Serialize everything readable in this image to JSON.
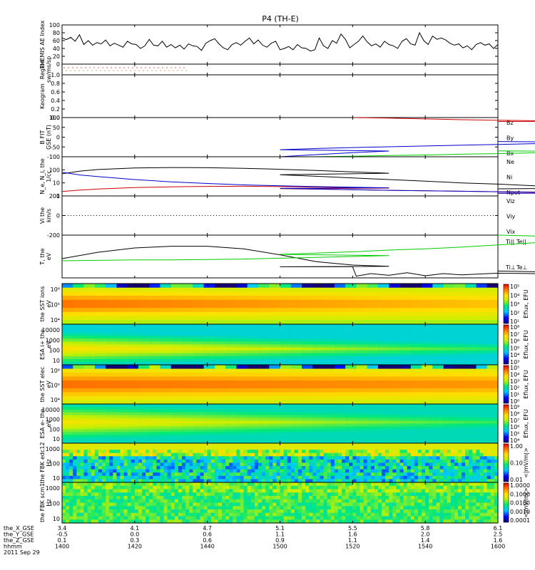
{
  "title": "P4 (TH-E)",
  "chart_data": [
    {
      "type": "line",
      "id": "ae",
      "ylabel": "THEMIS AE Index",
      "yticks": [
        "0",
        "20",
        "40",
        "60",
        "80",
        "100"
      ],
      "ylim": [
        0,
        120
      ],
      "series": [
        {
          "name": "AE",
          "color": "#000000",
          "values": [
            80,
            75,
            82,
            70,
            90,
            60,
            72,
            58,
            66,
            62,
            74,
            56,
            64,
            58,
            52,
            70,
            62,
            60,
            48,
            56,
            76,
            58,
            56,
            70,
            52,
            60,
            50,
            58,
            46,
            62,
            56,
            54,
            42,
            64,
            72,
            78,
            62,
            50,
            44,
            60,
            66,
            58,
            70,
            80,
            62,
            74,
            58,
            52,
            64,
            70,
            44,
            48,
            54,
            44,
            60,
            50,
            48,
            40,
            44,
            80,
            56,
            48,
            72,
            64,
            92,
            76,
            50,
            60,
            70,
            86,
            68,
            56,
            62,
            52,
            70,
            60,
            56,
            48,
            70,
            78,
            62,
            58,
            96,
            72,
            60,
            86,
            76,
            80,
            74,
            64,
            58,
            62,
            50,
            56,
            44,
            60,
            66,
            58,
            62,
            48,
            60
          ]
        }
      ]
    },
    {
      "type": "scatter",
      "id": "region",
      "ylabel": "Region",
      "ylabel2": "sw/ms/sp"
    },
    {
      "type": "line",
      "id": "keogram",
      "ylabel": "Keogram",
      "yticks": [
        "0.0",
        "0.2",
        "0.4",
        "0.6",
        "0.8",
        "1.0"
      ],
      "ylim": [
        0,
        1
      ]
    },
    {
      "type": "line",
      "id": "bfit",
      "ylabel": "B FIT",
      "ylabel2": "GSE (nT)",
      "yticks": [
        "-100",
        "-50",
        "0",
        "50",
        "100"
      ],
      "ylim": [
        -100,
        100
      ],
      "legend": [
        "Bz",
        "By",
        "Bx"
      ],
      "series": [
        {
          "name": "Bz",
          "color": "#cc0000",
          "x": [
            1520.5,
            1530,
            1540,
            1550,
            1560,
            1570,
            1580,
            1590,
            1600
          ],
          "values": [
            100,
            97,
            93,
            89,
            86,
            84,
            82,
            81,
            80
          ]
        },
        {
          "name": "By",
          "color": "#00cc00",
          "x": [
            1509,
            1520,
            1530,
            1540,
            1550,
            1560,
            1570,
            1580,
            1590,
            1600
          ],
          "values": [
            -100,
            -97,
            -94,
            -91,
            -87,
            -84,
            -80,
            -76,
            -73,
            -70
          ]
        },
        {
          "name": "Bx",
          "color": "#0000cc",
          "x": [
            1460,
            1470,
            1480,
            1490,
            1500,
            1510,
            1520,
            1530,
            1540,
            1550,
            1560,
            1570,
            1580,
            1590,
            1600
          ],
          "values": [
            -100,
            -89,
            -79,
            -71,
            -64,
            -58,
            -53,
            -49,
            -45,
            -41,
            -37,
            -33,
            -30,
            -26,
            -22
          ]
        }
      ]
    },
    {
      "type": "line",
      "id": "density",
      "ylabel": "N_e, N_i, the",
      "ylabel2": "1/cc",
      "yticks": [
        "1",
        "10",
        "100"
      ],
      "ylim": [
        1,
        1000
      ],
      "scale": "log",
      "legend": [
        "Ne",
        "Ni",
        "Npot"
      ],
      "series": [
        {
          "name": "Ne",
          "color": "#cc0000",
          "x": [
            1400,
            1405,
            1410,
            1420,
            1430,
            1440,
            1450,
            1460,
            1470,
            1480,
            1490,
            1500,
            1510,
            1520,
            1530,
            1540,
            1550,
            1560,
            1570,
            1580,
            1590,
            1600
          ],
          "values": [
            2.2,
            2.8,
            3.4,
            4.4,
            5,
            5.4,
            5.5,
            5.2,
            4.8,
            4.4,
            4,
            3.6,
            3.3,
            3,
            2.7,
            2.5,
            2.3,
            2.1,
            2,
            1.8,
            1.7,
            1.6
          ]
        },
        {
          "name": "Ni",
          "color": "#000000",
          "x": [
            1400,
            1405,
            1410,
            1420,
            1430,
            1440,
            1450,
            1460,
            1470,
            1480,
            1490,
            1500,
            1510,
            1520,
            1530,
            1540,
            1550,
            1560,
            1570,
            1580,
            1590,
            1600
          ],
          "values": [
            50,
            80,
            105,
            140,
            150,
            145,
            130,
            110,
            90,
            70,
            55,
            42,
            32,
            24,
            18,
            13.5,
            10,
            8,
            6,
            4.8,
            4,
            3.5
          ]
        },
        {
          "name": "Npot",
          "color": "#0000cc",
          "x": [
            1400,
            1405,
            1410,
            1420,
            1430,
            1440,
            1450,
            1460,
            1470,
            1480,
            1490,
            1500,
            1510,
            1520,
            1530,
            1540,
            1550,
            1560,
            1570,
            1580,
            1590,
            1600
          ],
          "values": [
            65,
            40,
            30,
            18,
            12,
            9,
            7,
            6,
            5.2,
            4.6,
            4.2,
            3.8,
            3.4,
            3,
            2.7,
            2.5,
            2.3,
            2.1,
            1.9,
            1.8,
            1.7,
            1.6
          ]
        }
      ]
    },
    {
      "type": "line",
      "id": "velocity",
      "ylabel": "Vi the",
      "ylabel2": "km/s",
      "yticks": [
        "-200",
        "0",
        "200"
      ],
      "ylim": [
        -300,
        300
      ],
      "legend": [
        "Viz",
        "Viy",
        "Vix"
      ],
      "zero_line": true
    },
    {
      "type": "line",
      "id": "temperature",
      "ylabel": "T, the",
      "ylabel2": "eV",
      "ylim": [
        0,
        1
      ],
      "legend": [
        "Ti||",
        "Te||",
        "Ti⊥",
        "Te⊥"
      ],
      "series": [
        {
          "name": "Te",
          "color": "#000000",
          "x": [
            1400,
            1410,
            1420,
            1430,
            1440,
            1450,
            1460,
            1470,
            1480,
            1490,
            1500,
            1510,
            1520,
            1521,
            1525,
            1530,
            1535,
            1540,
            1545,
            1550,
            1560,
            1570,
            1580,
            1590,
            1600
          ],
          "values": [
            0.45,
            0.6,
            0.7,
            0.74,
            0.74,
            0.68,
            0.54,
            0.38,
            0.3,
            0.27,
            0.26,
            0.26,
            0.26,
            0.04,
            0.1,
            0.06,
            0.12,
            0.05,
            0.1,
            0.07,
            0.11,
            0.1,
            0.14,
            0.11,
            0.16
          ]
        },
        {
          "name": "Ti",
          "color": "#00cc00",
          "x": [
            1400,
            1410,
            1420,
            1430,
            1440,
            1450,
            1460,
            1470,
            1480,
            1490,
            1500,
            1510,
            1520,
            1530,
            1540,
            1550,
            1560,
            1570,
            1580,
            1590,
            1600
          ],
          "values": [
            0.4,
            0.41,
            0.42,
            0.42,
            0.43,
            0.44,
            0.46,
            0.48,
            0.5,
            0.52,
            0.55,
            0.58,
            0.61,
            0.65,
            0.68,
            0.72,
            0.77,
            0.82,
            0.88,
            0.94,
            1.0
          ]
        }
      ]
    },
    {
      "type": "heatmap",
      "id": "ssti",
      "ylabel": "the SST ions",
      "ylabel2": "eV",
      "yticks": [
        "10⁴",
        "10⁵",
        "10⁶"
      ],
      "cbar": [
        "10¹",
        "10²",
        "10³",
        "10⁴",
        "10⁵"
      ],
      "cbar_label": "Eflux, EFU"
    },
    {
      "type": "heatmap",
      "id": "esai",
      "ylabel": "ESA i+ the",
      "ylabel2": "eV",
      "yticks": [
        "10",
        "100",
        "1000",
        "10000"
      ],
      "cbar": [
        "10³",
        "10⁴",
        "10⁵",
        "10⁶",
        "10⁷",
        "10⁸"
      ],
      "cbar_label": "Eflux, EFU"
    },
    {
      "type": "heatmap",
      "id": "sste",
      "ylabel": "the SST elec",
      "ylabel2": "eV",
      "yticks": [
        "10⁴",
        "10⁵",
        "10⁶"
      ],
      "cbar": [
        "10⁰",
        "10¹",
        "10²",
        "10³",
        "10⁴",
        "10⁵"
      ],
      "cbar_label": "Eflux, EFU"
    },
    {
      "type": "heatmap",
      "id": "esae",
      "ylabel": "ESA e- the",
      "ylabel2": "eV",
      "yticks": [
        "10",
        "100",
        "1000",
        "10000"
      ],
      "cbar": [
        "10⁴",
        "10⁵",
        "10⁶",
        "10⁷",
        "10⁸",
        "10⁹"
      ],
      "cbar_label": "Eflux, EFU"
    },
    {
      "type": "heatmap",
      "id": "fbkedc",
      "ylabel": "the FBK edc12",
      "ylabel2": "Hz",
      "yticks": [
        "10",
        "100",
        "1000"
      ],
      "cbar": [
        "0.01",
        "0.10",
        "1.00"
      ],
      "cbar_label": "<|mV/m|>"
    },
    {
      "type": "heatmap",
      "id": "fbkscm",
      "ylabel": "the FBK scm1",
      "ylabel2": "Hz",
      "yticks": [
        "10",
        "100",
        "1000"
      ],
      "cbar": [
        "0.0001",
        "0.0010",
        "0.0100",
        "0.1000",
        "1.0000"
      ],
      "cbar_label": "<|mV/m|>"
    }
  ],
  "xaxis": {
    "labels": [
      "the_X_GSE",
      "the_Y_GSE",
      "the_Z_GSE",
      "hhmm",
      "2011 Sep 29"
    ],
    "x": [
      1400,
      1420,
      1440,
      1500,
      1520,
      1540,
      1600
    ],
    "rows": [
      [
        "3.4",
        "4.1",
        "4.7",
        "5.1",
        "5.5",
        "5.8",
        "6.1"
      ],
      [
        "-0.5",
        "0.0",
        "0.6",
        "1.1",
        "1.6",
        "2.0",
        "2.5"
      ],
      [
        "0.1",
        "0.3",
        "0.6",
        "0.9",
        "1.1",
        "1.4",
        "1.6"
      ],
      [
        "1400",
        "1420",
        "1440",
        "1500",
        "1520",
        "1540",
        "1600"
      ]
    ]
  }
}
